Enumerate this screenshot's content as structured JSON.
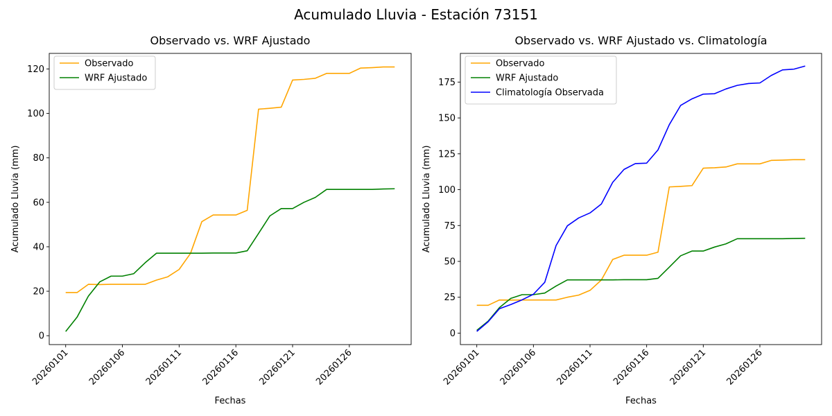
{
  "figure": {
    "suptitle": "Acumulado Lluvia - Estación 73151"
  },
  "chart_data": [
    {
      "type": "line",
      "title": "Observado vs. WRF Ajustado",
      "xlabel": "Fechas",
      "ylabel": "Acumulado Lluvia (mm)",
      "x": [
        "20260101",
        "20260102",
        "20260103",
        "20260104",
        "20260105",
        "20260106",
        "20260107",
        "20260108",
        "20260109",
        "20260110",
        "20260111",
        "20260112",
        "20260113",
        "20260114",
        "20260115",
        "20260116",
        "20260117",
        "20260118",
        "20260119",
        "20260120",
        "20260121",
        "20260122",
        "20260123",
        "20260124",
        "20260125",
        "20260126",
        "20260127",
        "20260128",
        "20260129",
        "20260130"
      ],
      "xticks": [
        "20260101",
        "20260106",
        "20260111",
        "20260116",
        "20260121",
        "20260126"
      ],
      "ylim": [
        -4,
        127
      ],
      "yticks": [
        0,
        20,
        40,
        60,
        80,
        100,
        120
      ],
      "legend_position": "top-left",
      "grid": false,
      "series": [
        {
          "name": "Observado",
          "color": "#ffa500",
          "values": [
            19.4,
            19.4,
            23.1,
            23.0,
            23.1,
            23.1,
            23.1,
            23.1,
            25.0,
            26.5,
            29.8,
            37.0,
            51.3,
            54.3,
            54.3,
            54.3,
            56.4,
            101.9,
            102.3,
            102.8,
            115.0,
            115.3,
            115.8,
            118.0,
            118.0,
            118.0,
            120.4,
            120.6,
            120.9,
            120.9
          ]
        },
        {
          "name": "WRF Ajustado",
          "color": "#008000",
          "values": [
            1.9,
            8.3,
            17.8,
            24.2,
            26.8,
            26.8,
            27.9,
            32.8,
            37.1,
            37.1,
            37.1,
            37.1,
            37.1,
            37.2,
            37.2,
            37.2,
            38.2,
            46.0,
            53.9,
            57.2,
            57.2,
            60.0,
            62.2,
            65.8,
            65.8,
            65.8,
            65.8,
            65.8,
            66.0,
            66.1
          ]
        }
      ]
    },
    {
      "type": "line",
      "title": "Observado vs. WRF Ajustado vs. Climatología",
      "xlabel": "Fechas",
      "ylabel": "Acumulado Lluvia (mm)",
      "x": [
        "20260101",
        "20260102",
        "20260103",
        "20260104",
        "20260105",
        "20260106",
        "20260107",
        "20260108",
        "20260109",
        "20260110",
        "20260111",
        "20260112",
        "20260113",
        "20260114",
        "20260115",
        "20260116",
        "20260117",
        "20260118",
        "20260119",
        "20260120",
        "20260121",
        "20260122",
        "20260123",
        "20260124",
        "20260125",
        "20260126",
        "20260127",
        "20260128",
        "20260129",
        "20260130"
      ],
      "xticks": [
        "20260101",
        "20260106",
        "20260111",
        "20260116",
        "20260121",
        "20260126"
      ],
      "ylim": [
        -8,
        195
      ],
      "yticks": [
        0,
        25,
        50,
        75,
        100,
        125,
        150,
        175
      ],
      "legend_position": "top-left",
      "grid": false,
      "series": [
        {
          "name": "Observado",
          "color": "#ffa500",
          "values": [
            19.4,
            19.4,
            23.1,
            23.0,
            23.1,
            23.1,
            23.1,
            23.1,
            25.0,
            26.5,
            29.8,
            37.0,
            51.3,
            54.3,
            54.3,
            54.3,
            56.4,
            101.9,
            102.3,
            102.8,
            115.0,
            115.3,
            115.8,
            118.0,
            118.0,
            118.0,
            120.4,
            120.6,
            120.9,
            120.9
          ]
        },
        {
          "name": "WRF Ajustado",
          "color": "#008000",
          "values": [
            1.9,
            8.3,
            17.8,
            24.2,
            26.8,
            26.8,
            27.9,
            32.8,
            37.1,
            37.1,
            37.1,
            37.1,
            37.1,
            37.2,
            37.2,
            37.2,
            38.2,
            46.0,
            53.9,
            57.2,
            57.2,
            60.0,
            62.2,
            65.8,
            65.8,
            65.8,
            65.8,
            65.8,
            66.0,
            66.1
          ]
        },
        {
          "name": "Climatología Observada",
          "color": "#0000ff",
          "values": [
            1.2,
            7.9,
            17.0,
            19.9,
            23.2,
            27.1,
            35.4,
            61.0,
            74.8,
            80.3,
            83.8,
            90.0,
            105.1,
            114.1,
            118.2,
            118.5,
            127.7,
            145.3,
            158.7,
            163.3,
            166.6,
            166.9,
            170.2,
            172.7,
            174.0,
            174.4,
            179.6,
            183.5,
            184.0,
            186.2
          ]
        }
      ]
    }
  ]
}
